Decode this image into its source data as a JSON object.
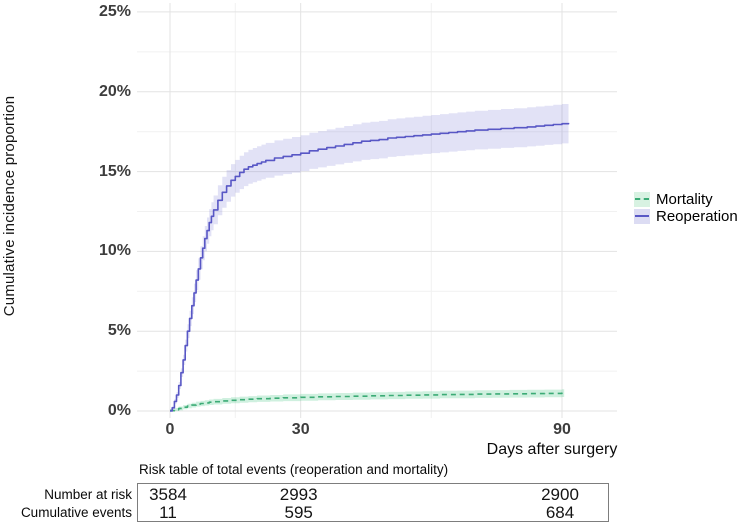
{
  "figure": {
    "y_axis": {
      "title": "Cumulative incidence proportion",
      "tick_labels": [
        "0%",
        "5%",
        "10%",
        "15%",
        "20%",
        "25%"
      ],
      "tick_values": [
        0,
        5,
        10,
        15,
        20,
        25
      ],
      "minor_values": [
        2.5,
        7.5,
        12.5,
        17.5,
        22.5
      ]
    },
    "x_axis": {
      "title": "Days after surgery",
      "tick_labels": [
        "0",
        "30",
        "90"
      ],
      "tick_values": [
        0,
        30,
        90
      ],
      "minor_values": [
        15,
        60
      ]
    },
    "legend": {
      "items": [
        {
          "label": "Mortality",
          "swatch_fill": "#d8f2e2",
          "line_color": "#3cab76",
          "line_style": "dashed"
        },
        {
          "label": "Reoperation",
          "swatch_fill": "#dcdcf3",
          "line_color": "#5857c5",
          "line_style": "solid"
        }
      ]
    },
    "colors": {
      "major_grid": "#e3e3e3",
      "minor_grid": "#f1f1f1",
      "tick_text": "#3d3d3d"
    }
  },
  "chart_data": {
    "type": "line",
    "subtype": "cumulative-incidence-step-curves-with-ci-bands",
    "xlabel": "Days after surgery",
    "ylabel": "Cumulative incidence proportion",
    "xlim": [
      -7.5,
      102.5
    ],
    "ylim": [
      0,
      25.5
    ],
    "x_breaks": [
      0,
      30,
      90
    ],
    "y_breaks_pct": [
      0,
      5,
      10,
      15,
      20,
      25
    ],
    "grid": "on",
    "legend_position": "right",
    "series": [
      {
        "name": "Mortality",
        "style": "dashed",
        "color": "#3cab76",
        "band_color": "rgba(62,196,128,0.25)",
        "ci": {
          "base": 0.1,
          "frac": 0.13
        },
        "points": [
          [
            0,
            0.02
          ],
          [
            1,
            0.08
          ],
          [
            2,
            0.16
          ],
          [
            3,
            0.24
          ],
          [
            4,
            0.31
          ],
          [
            5,
            0.37
          ],
          [
            6,
            0.43
          ],
          [
            7,
            0.47
          ],
          [
            8,
            0.51
          ],
          [
            9,
            0.55
          ],
          [
            10,
            0.58
          ],
          [
            12,
            0.63
          ],
          [
            14,
            0.67
          ],
          [
            16,
            0.71
          ],
          [
            18,
            0.74
          ],
          [
            20,
            0.77
          ],
          [
            23,
            0.8
          ],
          [
            26,
            0.83
          ],
          [
            30,
            0.86
          ],
          [
            34,
            0.89
          ],
          [
            38,
            0.91
          ],
          [
            42,
            0.93
          ],
          [
            46,
            0.95
          ],
          [
            50,
            0.97
          ],
          [
            54,
            0.99
          ],
          [
            58,
            1.01
          ],
          [
            62,
            1.03
          ],
          [
            66,
            1.04
          ],
          [
            70,
            1.06
          ],
          [
            74,
            1.07
          ],
          [
            78,
            1.08
          ],
          [
            82,
            1.09
          ],
          [
            86,
            1.1
          ],
          [
            90,
            1.12
          ],
          [
            90.5,
            1.12
          ]
        ]
      },
      {
        "name": "Reoperation",
        "style": "solid",
        "color": "#5857c5",
        "band_color": "rgba(108,108,212,0.20)",
        "ci": {
          "base": 0.12,
          "frac": 0.062
        },
        "points": [
          [
            0,
            0
          ],
          [
            0.5,
            0.2
          ],
          [
            1,
            0.6
          ],
          [
            1.5,
            1.0
          ],
          [
            2,
            1.6
          ],
          [
            2.5,
            2.4
          ],
          [
            3,
            3.2
          ],
          [
            3.5,
            4.1
          ],
          [
            4,
            5.0
          ],
          [
            4.5,
            5.8
          ],
          [
            5,
            6.6
          ],
          [
            5.5,
            7.4
          ],
          [
            6,
            8.2
          ],
          [
            6.5,
            8.9
          ],
          [
            7,
            9.6
          ],
          [
            7.5,
            10.2
          ],
          [
            8,
            10.8
          ],
          [
            8.5,
            11.3
          ],
          [
            9,
            11.8
          ],
          [
            9.5,
            12.2
          ],
          [
            10,
            12.6
          ],
          [
            11,
            13.2
          ],
          [
            12,
            13.7
          ],
          [
            13,
            14.1
          ],
          [
            14,
            14.45
          ],
          [
            15,
            14.7
          ],
          [
            16,
            14.95
          ],
          [
            17,
            15.15
          ],
          [
            18,
            15.3
          ],
          [
            19,
            15.4
          ],
          [
            20,
            15.5
          ],
          [
            21,
            15.6
          ],
          [
            22,
            15.7
          ],
          [
            24,
            15.85
          ],
          [
            26,
            15.95
          ],
          [
            28,
            16.05
          ],
          [
            30,
            16.15
          ],
          [
            32,
            16.3
          ],
          [
            34,
            16.4
          ],
          [
            36,
            16.5
          ],
          [
            38,
            16.6
          ],
          [
            40,
            16.7
          ],
          [
            42,
            16.8
          ],
          [
            44,
            16.9
          ],
          [
            46,
            16.95
          ],
          [
            48,
            17.0
          ],
          [
            50,
            17.1
          ],
          [
            52,
            17.15
          ],
          [
            54,
            17.2
          ],
          [
            56,
            17.25
          ],
          [
            58,
            17.3
          ],
          [
            60,
            17.35
          ],
          [
            62,
            17.4
          ],
          [
            64,
            17.45
          ],
          [
            66,
            17.5
          ],
          [
            68,
            17.55
          ],
          [
            70,
            17.6
          ],
          [
            73,
            17.65
          ],
          [
            76,
            17.7
          ],
          [
            79,
            17.75
          ],
          [
            82,
            17.8
          ],
          [
            84,
            17.85
          ],
          [
            86,
            17.9
          ],
          [
            88,
            17.95
          ],
          [
            90,
            18.0
          ],
          [
            91.5,
            18.05
          ]
        ]
      }
    ]
  },
  "risk_table": {
    "title": "Risk table of total events (reoperation and mortality)",
    "row_labels": [
      "Number at risk",
      "Cumulative events"
    ],
    "columns": [
      {
        "x_day": 0,
        "at_risk": "3584",
        "events": "11"
      },
      {
        "x_day": 30,
        "at_risk": "2993",
        "events": "595"
      },
      {
        "x_day": 90,
        "at_risk": "2900",
        "events": "684"
      }
    ]
  }
}
